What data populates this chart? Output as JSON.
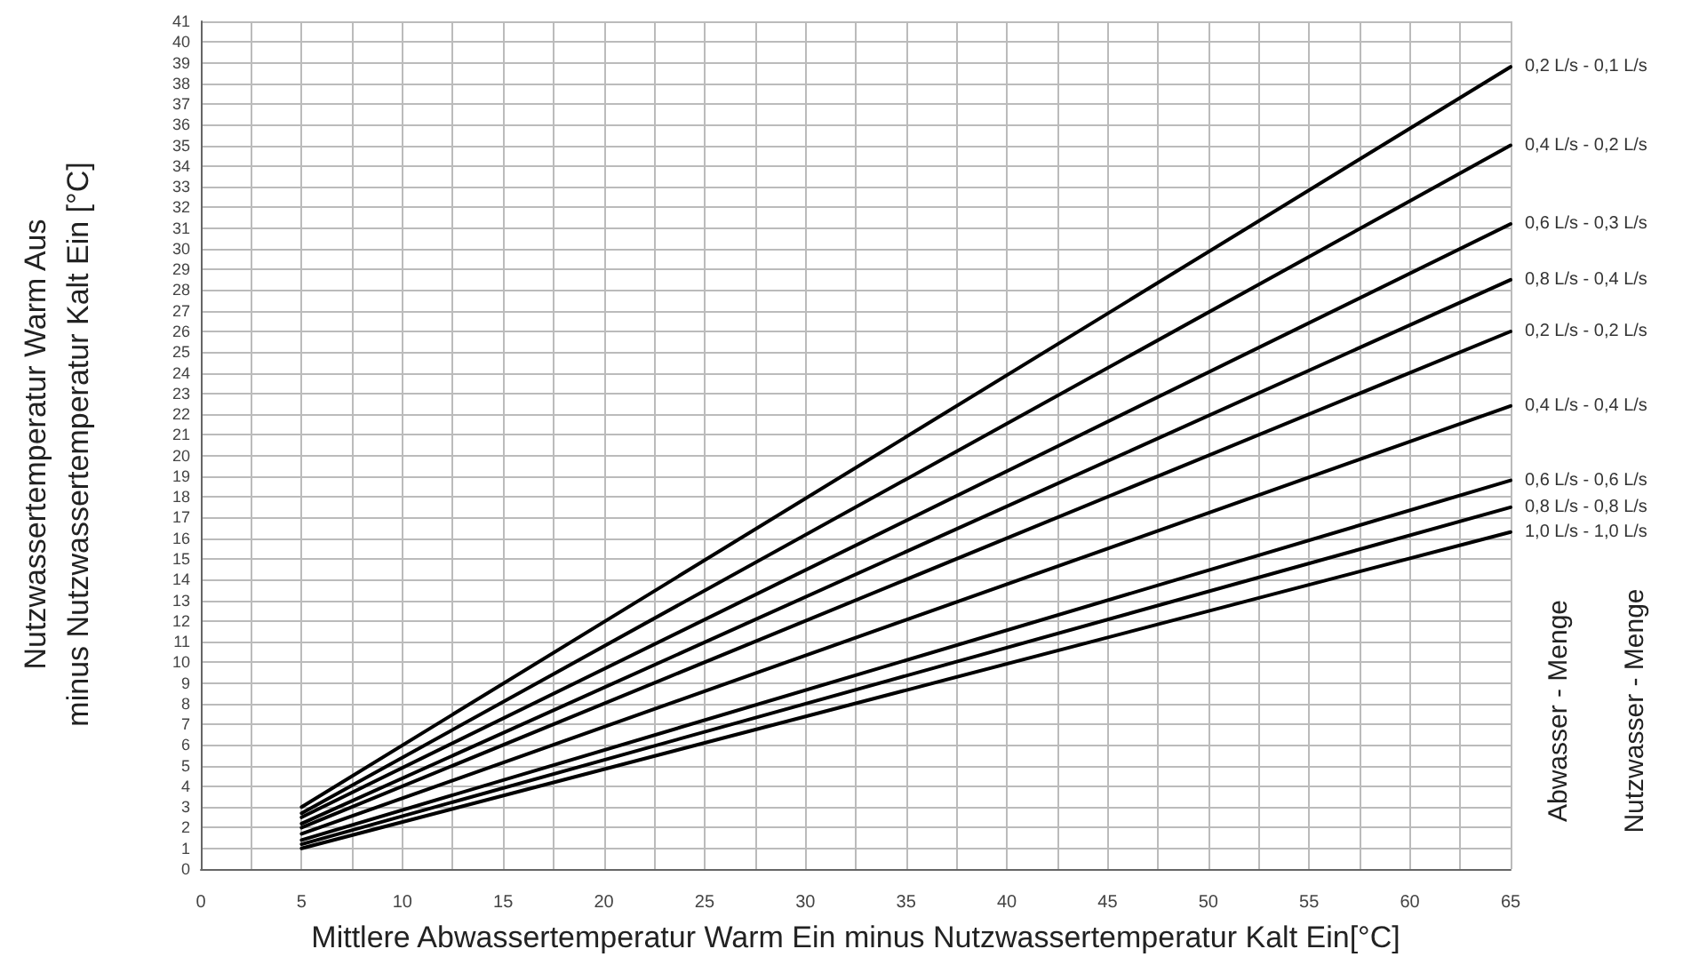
{
  "chart_data": {
    "type": "line",
    "xlabel": "Mittlere Abwassertemperatur Warm Ein minus Nutzwassertemperatur Kalt Ein[°C]",
    "ylabel": "Nutzwassertemperatur Warm Aus\nminus Nutzwassertemperatur Kalt Ein [°C]",
    "x": [
      5,
      65
    ],
    "series": [
      {
        "name": "0,2 L/s - 0,1 L/s",
        "color": "#000000",
        "values": [
          3.0,
          38.8
        ]
      },
      {
        "name": "0,4 L/s - 0,2 L/s",
        "color": "#000000",
        "values": [
          2.7,
          35.0
        ]
      },
      {
        "name": "0,6 L/s - 0,3 L/s",
        "color": "#000000",
        "values": [
          2.5,
          31.2
        ]
      },
      {
        "name": "0,8 L/s - 0,4 L/s",
        "color": "#000000",
        "values": [
          2.2,
          28.5
        ]
      },
      {
        "name": "0,2 L/s - 0,2 L/s",
        "color": "#000000",
        "values": [
          2.0,
          26.0
        ]
      },
      {
        "name": "0,4 L/s - 0,4 L/s",
        "color": "#000000",
        "values": [
          1.7,
          22.4
        ]
      },
      {
        "name": "0,6 L/s - 0,6 L/s",
        "color": "#000000",
        "values": [
          1.4,
          18.8
        ]
      },
      {
        "name": "0,8 L/s - 0,8 L/s",
        "color": "#000000",
        "values": [
          1.2,
          17.5
        ]
      },
      {
        "name": "1,0 L/s - 1,0 L/s",
        "color": "#000000",
        "values": [
          1.0,
          16.3
        ]
      }
    ],
    "xlim": [
      0,
      65
    ],
    "xticks": [
      0,
      {
        "value": 2.5,
        "label": null
      },
      5,
      {
        "value": 7.5,
        "label": null
      },
      10,
      {
        "value": 12.5,
        "label": null
      },
      15,
      {
        "value": 17.5,
        "label": null
      },
      20,
      {
        "value": 22.5,
        "label": null
      },
      25,
      {
        "value": 27.5,
        "label": null
      },
      30,
      {
        "value": 32.5,
        "label": null
      },
      35,
      {
        "value": 37.5,
        "label": null
      },
      40,
      {
        "value": 42.5,
        "label": null
      },
      45,
      {
        "value": 47.5,
        "label": null
      },
      50,
      {
        "value": 52.5,
        "label": null
      },
      55,
      {
        "value": 57.5,
        "label": null
      },
      60,
      {
        "value": 62.5,
        "label": null
      },
      65
    ],
    "ylim": [
      0,
      41
    ],
    "yticks": [
      0,
      1,
      2,
      3,
      4,
      5,
      6,
      7,
      8,
      9,
      10,
      11,
      12,
      13,
      14,
      15,
      16,
      17,
      18,
      19,
      20,
      21,
      22,
      23,
      24,
      25,
      26,
      27,
      28,
      29,
      30,
      31,
      32,
      33,
      34,
      35,
      36,
      37,
      38,
      39,
      40,
      41
    ],
    "grid": true,
    "legend": false,
    "marker": "none",
    "line_style": "solid",
    "annotations": [
      "Abwasser - Menge",
      "Nutzwasser - Menge"
    ]
  }
}
